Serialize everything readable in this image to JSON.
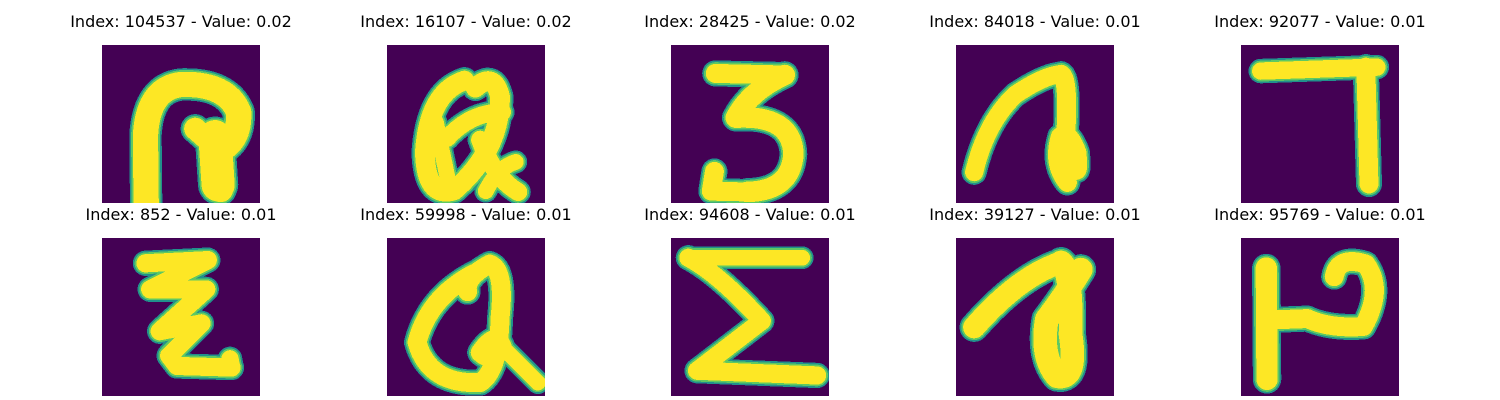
{
  "colors": {
    "background": "#440154",
    "stroke_edge": "#21918c",
    "stroke_mid": "#5ec962",
    "stroke_core": "#fde725"
  },
  "panels": [
    {
      "title": "Index: 104537 - Value: 0.02",
      "glyph": "hook-with-stem",
      "strokes": [
        "M5.6 21 L5.5 11.5 Q5.8 5.5 10 5 Q15.8 4.8 17.3 8.5 Q17.5 12.3 14.5 13.5",
        "M14.3 11.6 L14.7 17.7",
        "M11.8 10.6 L14.3 12.8",
        "M15 16 L15 18.3"
      ],
      "widths": [
        3.2,
        4.2,
        2.8,
        3.2
      ]
    },
    {
      "title": "Index: 16107 - Value: 0.02",
      "glyph": "looped-q",
      "strokes": [
        "M9.8 4.5 Q5.3 6 4.8 13.5 Q4.9 19.5 8.5 18.4 Q14.4 13.3 14.3 6.5 Q13.5 3.3 11.2 5.4",
        "M7.6 11.8 Q10.6 8.5 14.6 8.5",
        "M11.8 12 Q13.5 16.8 16.6 18.6",
        "M12.5 18.5 Q14 15.5 16.3 14.8",
        "M6.2 9.8 L7.6 16.5"
      ],
      "widths": [
        2.5,
        2.2,
        2.3,
        2.0,
        2.0
      ]
    },
    {
      "title": "Index: 28425 - Value: 0.02",
      "glyph": "digit-three",
      "strokes": [
        "M5.6 3.6 L14.5 3.8",
        "M14.4 3.8 Q10 5.8 8.2 9.2 Q15.3 8.8 15.5 13.8 Q15.2 18.5 9.6 18.6",
        "M9.6 18.6 L5.1 18.5 L5.5 16"
      ],
      "widths": [
        2.4,
        2.6,
        2.4
      ]
    },
    {
      "title": "Index: 84018 - Value: 0.01",
      "glyph": "looped-a",
      "strokes": [
        "M2.3 16.1 Q3.8 9.8 7.5 6.3 Q11.2 3.8 13.3 3.7",
        "M13.3 3.7 Q14.4 4.3 13.8 12.8 Q15.8 18.5 15.3 13.6 Q14.3 10.8 13.2 11.6 Q12.2 15 14.1 17.4"
      ],
      "widths": [
        2.3,
        2.4
      ]
    },
    {
      "title": "Index: 92077 - Value: 0.01",
      "glyph": "digit-seven",
      "strokes": [
        "M2.5 3.3 L17.2 2.8",
        "M15.8 2.8 L16.2 17.6"
      ],
      "widths": [
        2.2,
        2.4
      ]
    },
    {
      "title": "Index: 852 - Value: 0.01",
      "glyph": "zigzag-z",
      "strokes": [
        "M5.5 3.2 L13.4 2.8 L6.1 6.5 L13.2 6.5 L7.3 11.8 L12.6 10.8 L8.5 14.9 L9.5 16.2 L16.4 16.4",
        "M16.4 16.4 L16.2 15.3"
      ],
      "widths": [
        2.3,
        2.2
      ]
    },
    {
      "title": "Index: 59998 - Value: 0.01",
      "glyph": "looped-q",
      "strokes": [
        "M11 4.5 Q5.3 7.5 3.8 13.2 Q5.3 18.6 11.8 18.3 Q14.2 16.8 14.3 10.2 Q15 4 13 3.3 Q9.8 5 10.2 6.8",
        "M11.8 14.5 Q13.8 11.6 14.6 13.8 Q13.1 15.8 11.8 14.5",
        "M14.6 13.8 L19.1 18.3"
      ],
      "widths": [
        2.4,
        2.4,
        2.0
      ]
    },
    {
      "title": "Index: 94608 - Value: 0.01",
      "glyph": "sigma",
      "strokes": [
        "M2.2 2.5 L16.6 2.5",
        "M2.2 2.5 Q6 4.5 11.5 10.5 L3.3 16.8",
        "M3.3 16.8 L18.5 17.4"
      ],
      "widths": [
        2.0,
        2.3,
        2.3
      ]
    },
    {
      "title": "Index: 39127 - Value: 0.01",
      "glyph": "looped-a",
      "strokes": [
        "M2.3 11.3 Q8 4.8 13.3 3.1",
        "M13.3 3.1 Q14.7 4.2 14.5 12.2 Q15.4 18 12.8 17.5 Q10.7 15 11.5 10.3 Q13.5 7.7 15.8 4"
      ],
      "widths": [
        2.8,
        3.0
      ]
    },
    {
      "title": "Index: 95769 - Value: 0.01",
      "glyph": "p-shape",
      "strokes": [
        "M3.2 3.8 L3.3 17.9",
        "M3.2 10.4 L8.4 10.2",
        "M8.4 10.2 Q11.2 11.5 15.5 11.2 Q18.1 6.5 15.8 3.3 Q12.3 2.2 11.8 4.9"
      ],
      "widths": [
        2.7,
        2.4,
        2.4
      ]
    }
  ]
}
